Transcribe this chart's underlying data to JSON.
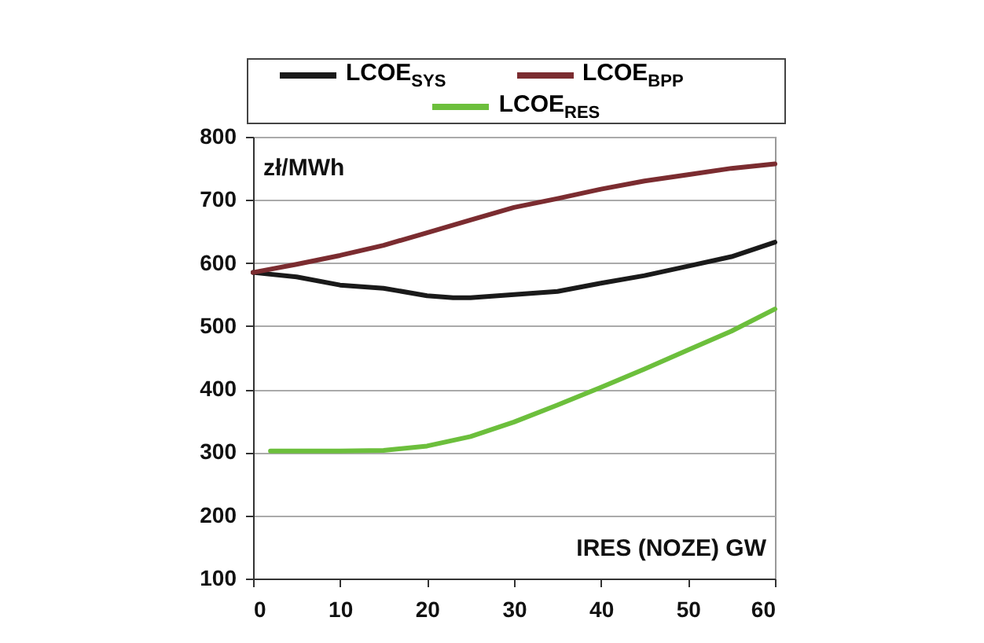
{
  "chart_data": {
    "type": "line",
    "xlabel": "IRES (NOZE) GW",
    "ylabel": "zł/MWh",
    "xlim": [
      0,
      60
    ],
    "xticks": [
      0,
      10,
      20,
      30,
      40,
      50,
      60
    ],
    "ylim": [
      100,
      800
    ],
    "yticks": [
      100,
      200,
      300,
      400,
      500,
      600,
      700,
      800
    ],
    "grid": "y",
    "legend": "top",
    "line_style": "solid",
    "series": [
      {
        "name": "LCOE$_{SYS}$",
        "color": "#1a1a1a",
        "x": [
          0,
          5,
          10,
          15,
          20,
          23,
          25,
          30,
          35,
          40,
          45,
          50,
          55,
          60
        ],
        "values": [
          585,
          578,
          565,
          560,
          548,
          545,
          545,
          550,
          555,
          568,
          580,
          595,
          610,
          633
        ]
      },
      {
        "name": "LCOE$_{BPP}$",
        "color": "#7b2c30",
        "x": [
          0,
          5,
          10,
          15,
          20,
          25,
          30,
          35,
          40,
          45,
          50,
          55,
          60
        ],
        "values": [
          585,
          598,
          612,
          628,
          648,
          668,
          688,
          702,
          717,
          730,
          740,
          750,
          757
        ]
      },
      {
        "name": "LCOE$_{RES}$",
        "color": "#6cbf3c",
        "x": [
          2,
          5,
          10,
          15,
          20,
          25,
          30,
          35,
          40,
          45,
          50,
          55,
          60
        ],
        "values": [
          302,
          302,
          302,
          303,
          310,
          325,
          348,
          375,
          403,
          432,
          462,
          492,
          527
        ]
      }
    ]
  }
}
